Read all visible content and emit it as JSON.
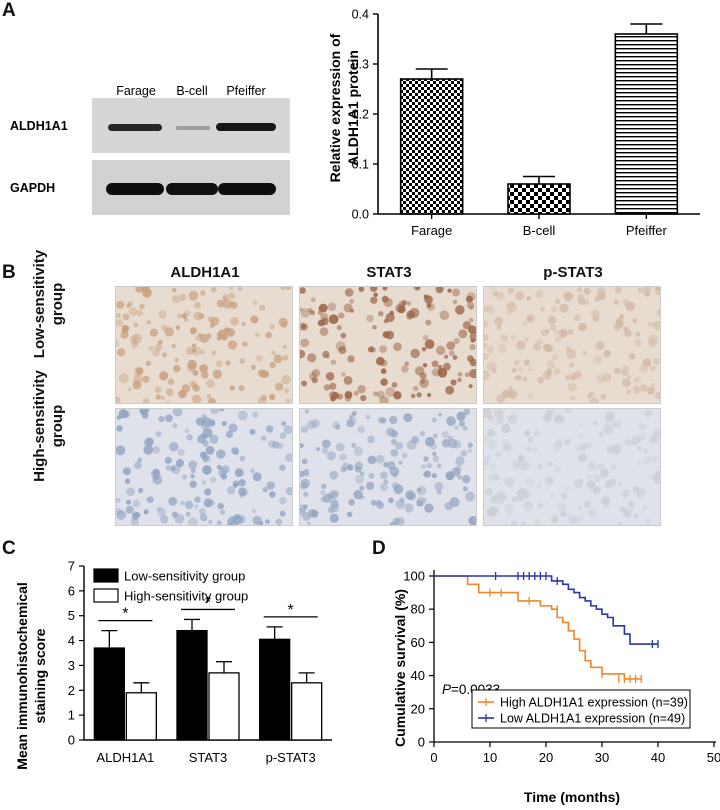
{
  "panels": {
    "a": "A",
    "b": "B",
    "c": "C",
    "d": "D"
  },
  "blot": {
    "lane_labels": [
      "Farage",
      "B-cell",
      "Pfeiffer"
    ],
    "row_labels": [
      "ALDH1A1",
      "GAPDH"
    ]
  },
  "ihc": {
    "column_titles": [
      "ALDH1A1",
      "STAT3",
      "p-STAT3"
    ],
    "row_labels": [
      {
        "line1": "Low-sensitivity",
        "line2": "group"
      },
      {
        "line1": "High-sensitivity",
        "line2": "group"
      }
    ],
    "image_colors": {
      "low": [
        "#c9a07e",
        "#9a6444",
        "#d3b9a6"
      ],
      "high": [
        "#8fa3c2",
        "#95a6c0",
        "#cdd0d6"
      ]
    }
  },
  "chart_data": [
    {
      "type": "bar",
      "panel": "A",
      "categories": [
        "Farage",
        "B-cell",
        "Pfeiffer"
      ],
      "values": [
        0.27,
        0.06,
        0.36
      ],
      "errors": [
        0.02,
        0.015,
        0.02
      ],
      "ylabel_line1": "Relative expression of",
      "ylabel_line2": "ALDH1A1 protein",
      "ylim": [
        0,
        0.4
      ],
      "yticks": [
        "0.0",
        "0.1",
        "0.2",
        "0.3",
        "0.4"
      ],
      "patterns": [
        "checker",
        "checker-fine",
        "horizontal-lines"
      ]
    },
    {
      "type": "bar",
      "panel": "C",
      "categories": [
        "ALDH1A1",
        "STAT3",
        "p-STAT3"
      ],
      "series": [
        {
          "name": "Low-sensitivity group",
          "values": [
            3.7,
            4.4,
            4.05
          ],
          "errors": [
            0.7,
            0.45,
            0.5
          ],
          "color": "#000000"
        },
        {
          "name": "High-sensitivity group",
          "values": [
            1.9,
            2.7,
            2.3
          ],
          "errors": [
            0.4,
            0.45,
            0.4
          ],
          "color": "#ffffff"
        }
      ],
      "significance": [
        "*",
        "*",
        "*"
      ],
      "ylabel_line1": "Mean immunohistochemical",
      "ylabel_line2": "staining score",
      "ylim": [
        0,
        7
      ],
      "yticks": [
        "0",
        "1",
        "2",
        "3",
        "4",
        "5",
        "6",
        "7"
      ]
    },
    {
      "type": "line",
      "panel": "D",
      "xlabel": "Time (months)",
      "ylabel": "Cumulative survival (%)",
      "xlim": [
        0,
        50
      ],
      "ylim": [
        0,
        100
      ],
      "xticks": [
        "0",
        "10",
        "20",
        "30",
        "40",
        "50"
      ],
      "yticks": [
        "0",
        "20",
        "40",
        "60",
        "80",
        "100"
      ],
      "annotation_italic": "P",
      "annotation_rest": "=0.0033",
      "legend_position": "bottom-right",
      "series": [
        {
          "name": "High ALDH1A1 expression (n=39)",
          "color": "#f0882a",
          "steps": [
            [
              0,
              100
            ],
            [
              6,
              95
            ],
            [
              8,
              90
            ],
            [
              15,
              85
            ],
            [
              19,
              82
            ],
            [
              21,
              80
            ],
            [
              22,
              75
            ],
            [
              23,
              72
            ],
            [
              24,
              67
            ],
            [
              25,
              62
            ],
            [
              26,
              55
            ],
            [
              27,
              49
            ],
            [
              28,
              45
            ],
            [
              30,
              41
            ],
            [
              34,
              38
            ],
            [
              37,
              38
            ]
          ],
          "censored": [
            [
              10,
              90
            ],
            [
              12,
              90
            ],
            [
              17,
              85
            ],
            [
              22,
              80
            ],
            [
              30,
              41
            ],
            [
              33,
              38
            ],
            [
              34,
              38
            ],
            [
              35,
              38
            ],
            [
              36,
              38
            ],
            [
              37,
              38
            ]
          ]
        },
        {
          "name": "Low ALDH1A1 expression (n=49)",
          "color": "#2b35a8",
          "steps": [
            [
              0,
              100
            ],
            [
              21,
              97
            ],
            [
              23,
              95
            ],
            [
              24,
              92
            ],
            [
              25,
              90
            ],
            [
              26,
              87
            ],
            [
              27,
              85
            ],
            [
              28,
              82
            ],
            [
              29,
              80
            ],
            [
              30,
              77
            ],
            [
              31,
              75
            ],
            [
              32,
              70
            ],
            [
              34,
              65
            ],
            [
              35,
              59
            ],
            [
              40,
              59
            ]
          ],
          "censored": [
            [
              11,
              100
            ],
            [
              15,
              100
            ],
            [
              16,
              100
            ],
            [
              17,
              100
            ],
            [
              18,
              100
            ],
            [
              19,
              100
            ],
            [
              20,
              100
            ],
            [
              22,
              97
            ],
            [
              39,
              59
            ],
            [
              40,
              59
            ]
          ]
        }
      ]
    }
  ]
}
